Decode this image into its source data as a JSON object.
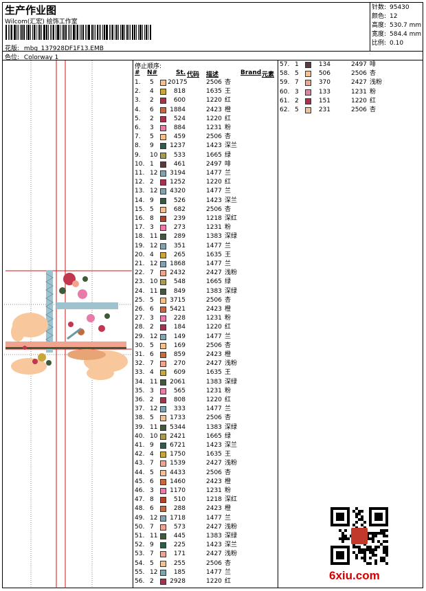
{
  "header": {
    "title": "生产作业图",
    "company": "Wilcom(汇宏) 绘饰工作室",
    "pattern_label": "花版:",
    "pattern_value": "mbg_137928DF1F13.EMB",
    "colorway_label": "色位:",
    "colorway_value": "Colorway 1"
  },
  "stats": [
    {
      "label": "针数:",
      "value": "95430"
    },
    {
      "label": "颜色:",
      "value": "12"
    },
    {
      "label": "高度:",
      "value": "530.7 mm"
    },
    {
      "label": "宽度:",
      "value": "584.4 mm"
    },
    {
      "label": "比例:",
      "value": "0.10"
    }
  ],
  "sequence": {
    "title": "停止顺序:",
    "columns": {
      "no": "#",
      "n": "N#",
      "st": "St.",
      "code": "代码",
      "desc": "描述",
      "brand": "Brand",
      "element": "元素"
    },
    "rows": [
      {
        "no": "1.",
        "n": "5",
        "color": "#F5C08F",
        "st": "20175",
        "code": "2506",
        "desc": "杏"
      },
      {
        "no": "2.",
        "n": "4",
        "color": "#C9A63A",
        "st": "818",
        "code": "1635",
        "desc": "王"
      },
      {
        "no": "3.",
        "n": "2",
        "color": "#A8324D",
        "st": "600",
        "code": "1220",
        "desc": "红"
      },
      {
        "no": "4.",
        "n": "6",
        "color": "#C9683C",
        "st": "1884",
        "code": "2423",
        "desc": "橙"
      },
      {
        "no": "5.",
        "n": "2",
        "color": "#A8324D",
        "st": "524",
        "code": "1220",
        "desc": "红"
      },
      {
        "no": "6.",
        "n": "3",
        "color": "#E87BA8",
        "st": "884",
        "code": "1231",
        "desc": "粉"
      },
      {
        "no": "7.",
        "n": "5",
        "color": "#F5C08F",
        "st": "459",
        "code": "2506",
        "desc": "杏"
      },
      {
        "no": "8.",
        "n": "9",
        "color": "#2E5C46",
        "st": "1237",
        "code": "1423",
        "desc": "深兰"
      },
      {
        "no": "9.",
        "n": "10",
        "color": "#A89A4E",
        "st": "533",
        "code": "1665",
        "desc": "绿"
      },
      {
        "no": "10.",
        "n": "1",
        "color": "#5A3A3A",
        "st": "461",
        "code": "2497",
        "desc": "啡"
      },
      {
        "no": "11.",
        "n": "12",
        "color": "#7FA3B0",
        "st": "3194",
        "code": "1477",
        "desc": "兰"
      },
      {
        "no": "12.",
        "n": "2",
        "color": "#A8324D",
        "st": "1252",
        "code": "1220",
        "desc": "红"
      },
      {
        "no": "13.",
        "n": "12",
        "color": "#7FA3B0",
        "st": "4320",
        "code": "1477",
        "desc": "兰"
      },
      {
        "no": "14.",
        "n": "9",
        "color": "#2E5C46",
        "st": "526",
        "code": "1423",
        "desc": "深兰"
      },
      {
        "no": "15.",
        "n": "5",
        "color": "#F5C08F",
        "st": "682",
        "code": "2506",
        "desc": "杏"
      },
      {
        "no": "16.",
        "n": "8",
        "color": "#B0452E",
        "st": "239",
        "code": "1218",
        "desc": "深红"
      },
      {
        "no": "17.",
        "n": "3",
        "color": "#E87BA8",
        "st": "273",
        "code": "1231",
        "desc": "粉"
      },
      {
        "no": "18.",
        "n": "11",
        "color": "#3E5A3A",
        "st": "289",
        "code": "1383",
        "desc": "深绿"
      },
      {
        "no": "19.",
        "n": "12",
        "color": "#7FA3B0",
        "st": "351",
        "code": "1477",
        "desc": "兰"
      },
      {
        "no": "20.",
        "n": "4",
        "color": "#C9A63A",
        "st": "265",
        "code": "1635",
        "desc": "王"
      },
      {
        "no": "21.",
        "n": "12",
        "color": "#7FA3B0",
        "st": "1868",
        "code": "1477",
        "desc": "兰"
      },
      {
        "no": "22.",
        "n": "7",
        "color": "#F2A38E",
        "st": "2432",
        "code": "2427",
        "desc": "浅粉"
      },
      {
        "no": "23.",
        "n": "10",
        "color": "#A89A4E",
        "st": "548",
        "code": "1665",
        "desc": "绿"
      },
      {
        "no": "24.",
        "n": "11",
        "color": "#3E5A3A",
        "st": "849",
        "code": "1383",
        "desc": "深绿"
      },
      {
        "no": "25.",
        "n": "5",
        "color": "#F5C08F",
        "st": "3715",
        "code": "2506",
        "desc": "杏"
      },
      {
        "no": "26.",
        "n": "6",
        "color": "#C9683C",
        "st": "5421",
        "code": "2423",
        "desc": "橙"
      },
      {
        "no": "27.",
        "n": "3",
        "color": "#E87BA8",
        "st": "228",
        "code": "1231",
        "desc": "粉"
      },
      {
        "no": "28.",
        "n": "2",
        "color": "#A8324D",
        "st": "184",
        "code": "1220",
        "desc": "红"
      },
      {
        "no": "29.",
        "n": "12",
        "color": "#7FA3B0",
        "st": "149",
        "code": "1477",
        "desc": "兰"
      },
      {
        "no": "30.",
        "n": "5",
        "color": "#F5C08F",
        "st": "169",
        "code": "2506",
        "desc": "杏"
      },
      {
        "no": "31.",
        "n": "6",
        "color": "#C9683C",
        "st": "859",
        "code": "2423",
        "desc": "橙"
      },
      {
        "no": "32.",
        "n": "7",
        "color": "#F2A38E",
        "st": "270",
        "code": "2427",
        "desc": "浅粉"
      },
      {
        "no": "33.",
        "n": "4",
        "color": "#C9A63A",
        "st": "609",
        "code": "1635",
        "desc": "王"
      },
      {
        "no": "34.",
        "n": "11",
        "color": "#3E5A3A",
        "st": "2061",
        "code": "1383",
        "desc": "深绿"
      },
      {
        "no": "35.",
        "n": "3",
        "color": "#E87BA8",
        "st": "565",
        "code": "1231",
        "desc": "粉"
      },
      {
        "no": "36.",
        "n": "2",
        "color": "#A8324D",
        "st": "808",
        "code": "1220",
        "desc": "红"
      },
      {
        "no": "37.",
        "n": "12",
        "color": "#7FA3B0",
        "st": "333",
        "code": "1477",
        "desc": "兰"
      },
      {
        "no": "38.",
        "n": "5",
        "color": "#F5C08F",
        "st": "1733",
        "code": "2506",
        "desc": "杏"
      },
      {
        "no": "39.",
        "n": "11",
        "color": "#3E5A3A",
        "st": "5344",
        "code": "1383",
        "desc": "深绿"
      },
      {
        "no": "40.",
        "n": "10",
        "color": "#A89A4E",
        "st": "2421",
        "code": "1665",
        "desc": "绿"
      },
      {
        "no": "41.",
        "n": "9",
        "color": "#2E5C46",
        "st": "6721",
        "code": "1423",
        "desc": "深兰"
      },
      {
        "no": "42.",
        "n": "4",
        "color": "#C9A63A",
        "st": "1750",
        "code": "1635",
        "desc": "王"
      },
      {
        "no": "43.",
        "n": "7",
        "color": "#F2A38E",
        "st": "1539",
        "code": "2427",
        "desc": "浅粉"
      },
      {
        "no": "44.",
        "n": "5",
        "color": "#F5C08F",
        "st": "4433",
        "code": "2506",
        "desc": "杏"
      },
      {
        "no": "45.",
        "n": "6",
        "color": "#C9683C",
        "st": "1460",
        "code": "2423",
        "desc": "橙"
      },
      {
        "no": "46.",
        "n": "3",
        "color": "#E87BA8",
        "st": "1170",
        "code": "1231",
        "desc": "粉"
      },
      {
        "no": "47.",
        "n": "8",
        "color": "#B0452E",
        "st": "510",
        "code": "1218",
        "desc": "深红"
      },
      {
        "no": "48.",
        "n": "6",
        "color": "#C9683C",
        "st": "288",
        "code": "2423",
        "desc": "橙"
      },
      {
        "no": "49.",
        "n": "12",
        "color": "#7FA3B0",
        "st": "1718",
        "code": "1477",
        "desc": "兰"
      },
      {
        "no": "50.",
        "n": "7",
        "color": "#F2A38E",
        "st": "573",
        "code": "2427",
        "desc": "浅粉"
      },
      {
        "no": "51.",
        "n": "11",
        "color": "#3E5A3A",
        "st": "445",
        "code": "1383",
        "desc": "深绿"
      },
      {
        "no": "52.",
        "n": "9",
        "color": "#2E5C46",
        "st": "225",
        "code": "1423",
        "desc": "深兰"
      },
      {
        "no": "53.",
        "n": "7",
        "color": "#F2A38E",
        "st": "171",
        "code": "2427",
        "desc": "浅粉"
      },
      {
        "no": "54.",
        "n": "5",
        "color": "#F5C08F",
        "st": "255",
        "code": "2506",
        "desc": "杏"
      },
      {
        "no": "55.",
        "n": "12",
        "color": "#7FA3B0",
        "st": "185",
        "code": "1477",
        "desc": "兰"
      },
      {
        "no": "56.",
        "n": "2",
        "color": "#A8324D",
        "st": "2928",
        "code": "1220",
        "desc": "红"
      },
      {
        "no": "57.",
        "n": "1",
        "color": "#5A3A3A",
        "st": "134",
        "code": "2497",
        "desc": "啡"
      },
      {
        "no": "58.",
        "n": "5",
        "color": "#F5C08F",
        "st": "506",
        "code": "2506",
        "desc": "杏"
      },
      {
        "no": "59.",
        "n": "7",
        "color": "#F2A38E",
        "st": "370",
        "code": "2427",
        "desc": "浅粉"
      },
      {
        "no": "60.",
        "n": "3",
        "color": "#E87BA8",
        "st": "133",
        "code": "1231",
        "desc": "粉"
      },
      {
        "no": "61.",
        "n": "2",
        "color": "#A8324D",
        "st": "151",
        "code": "1220",
        "desc": "红"
      },
      {
        "no": "62.",
        "n": "5",
        "color": "#F5C08F",
        "st": "231",
        "code": "2506",
        "desc": "杏"
      }
    ]
  },
  "footer": {
    "logo_text": "6xiu.com",
    "qr_icon": "qr-code-icon"
  },
  "colors": {
    "accent_red": "#d40000"
  }
}
